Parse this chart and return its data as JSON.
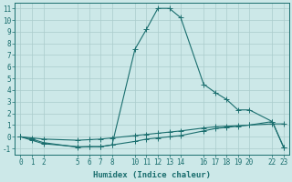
{
  "xlabel": "Humidex (Indice chaleur)",
  "bg_color": "#cce8e8",
  "grid_color": "#aacccc",
  "line_color": "#1a6e6e",
  "ylim": [
    -1.5,
    11.5
  ],
  "xlim": [
    -0.5,
    23.5
  ],
  "yticks": [
    -1,
    0,
    1,
    2,
    3,
    4,
    5,
    6,
    7,
    8,
    9,
    10,
    11
  ],
  "xticks": [
    0,
    1,
    2,
    5,
    6,
    7,
    8,
    10,
    11,
    12,
    13,
    14,
    16,
    17,
    18,
    19,
    20,
    22,
    23
  ],
  "xtick_labels": [
    "0",
    "1",
    "2",
    "5",
    "6",
    "7",
    "8",
    "10",
    "11",
    "12",
    "13",
    "14",
    "16",
    "17",
    "18",
    "19",
    "20",
    "22",
    "23"
  ],
  "line1_x": [
    0,
    1,
    2,
    5,
    6,
    7,
    8,
    10,
    11,
    12,
    13,
    14,
    16,
    17,
    18,
    19,
    20,
    22,
    23
  ],
  "line1_y": [
    0.0,
    -0.2,
    -0.5,
    -0.9,
    -0.85,
    -0.85,
    -0.7,
    7.5,
    9.2,
    11.0,
    11.0,
    10.2,
    4.5,
    3.8,
    3.2,
    2.3,
    2.3,
    1.3,
    -0.9
  ],
  "line2_x": [
    0,
    1,
    2,
    5,
    6,
    7,
    8,
    10,
    11,
    12,
    13,
    14,
    16,
    17,
    18,
    19,
    20,
    22,
    23
  ],
  "line2_y": [
    0.0,
    -0.3,
    -0.6,
    -0.85,
    -0.85,
    -0.85,
    -0.7,
    -0.4,
    -0.2,
    -0.1,
    0.0,
    0.1,
    0.5,
    0.7,
    0.8,
    0.9,
    1.0,
    1.3,
    -0.95
  ],
  "line3_x": [
    0,
    1,
    2,
    5,
    6,
    7,
    8,
    10,
    11,
    12,
    13,
    14,
    16,
    17,
    18,
    19,
    20,
    22,
    23
  ],
  "line3_y": [
    0.0,
    -0.1,
    -0.2,
    -0.3,
    -0.25,
    -0.2,
    -0.1,
    0.1,
    0.2,
    0.3,
    0.4,
    0.5,
    0.75,
    0.85,
    0.9,
    0.95,
    1.0,
    1.1,
    1.1
  ],
  "marker_size": 2.5,
  "linewidth": 0.8,
  "tick_fontsize": 5.5,
  "label_fontsize": 6.5
}
